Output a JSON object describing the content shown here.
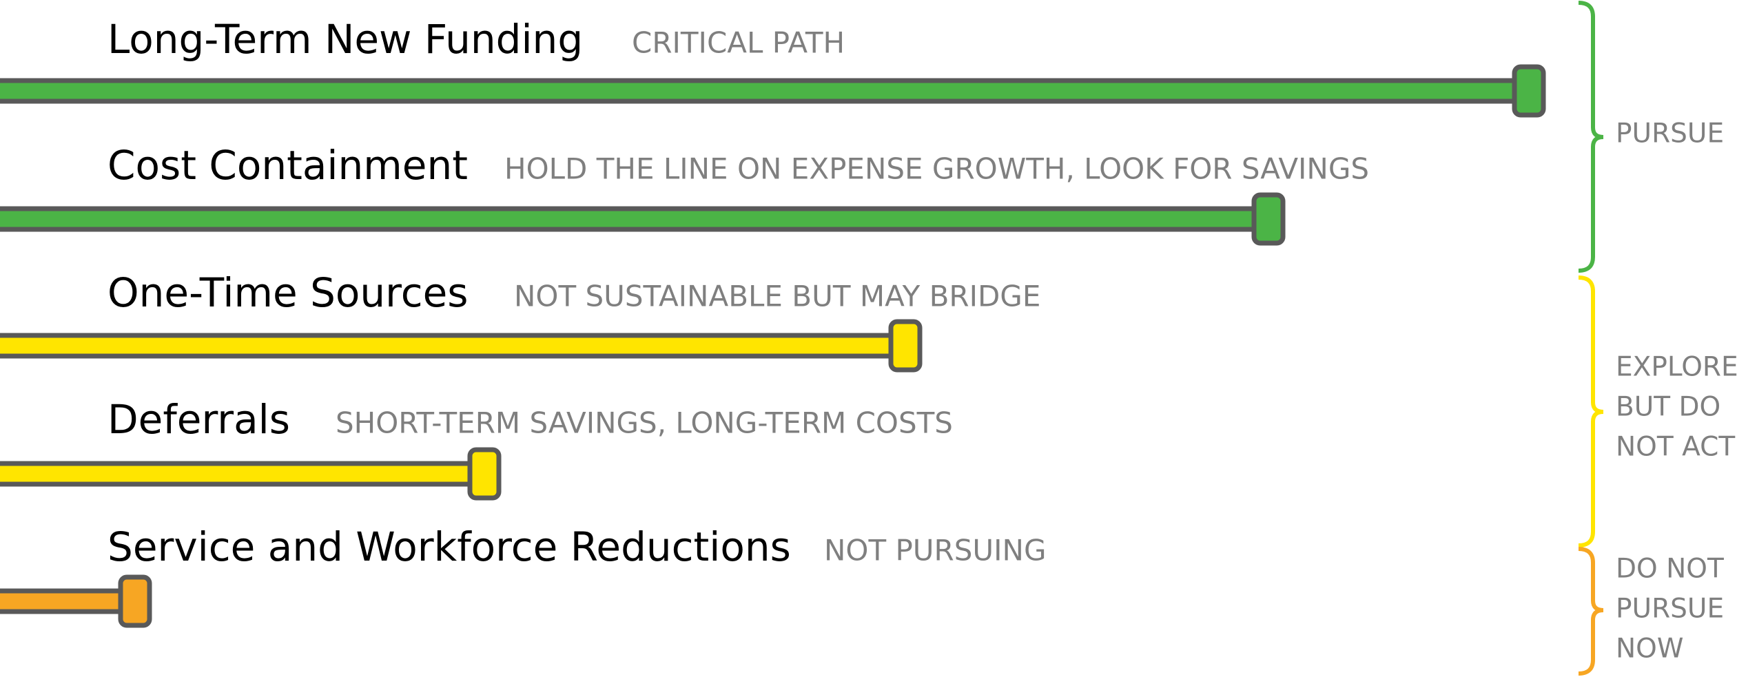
{
  "items": [
    {
      "label": "Long-Term New Funding",
      "note": "CRITICAL PATH",
      "color": "#4bb446"
    },
    {
      "label": "Cost Containment",
      "note": "HOLD THE LINE ON EXPENSE GROWTH, LOOK FOR SAVINGS",
      "color": "#4bb446"
    },
    {
      "label": "One-Time Sources",
      "note": "NOT SUSTAINABLE BUT MAY BRIDGE",
      "color": "#ffe500"
    },
    {
      "label": "Deferrals",
      "note": "SHORT-TERM SAVINGS, LONG-TERM COSTS",
      "color": "#ffe500"
    },
    {
      "label": "Service and Workforce Reductions",
      "note": "NOT PURSUING",
      "color": "#f7a623"
    }
  ],
  "groups": [
    {
      "lines": [
        "PURSUE"
      ],
      "color": "#4bb446"
    },
    {
      "lines": [
        "EXPLORE",
        "BUT DO",
        "NOT ACT"
      ],
      "color": "#ffe500"
    },
    {
      "lines": [
        "DO NOT",
        "PURSUE",
        "NOW"
      ],
      "color": "#f7a623"
    }
  ]
}
